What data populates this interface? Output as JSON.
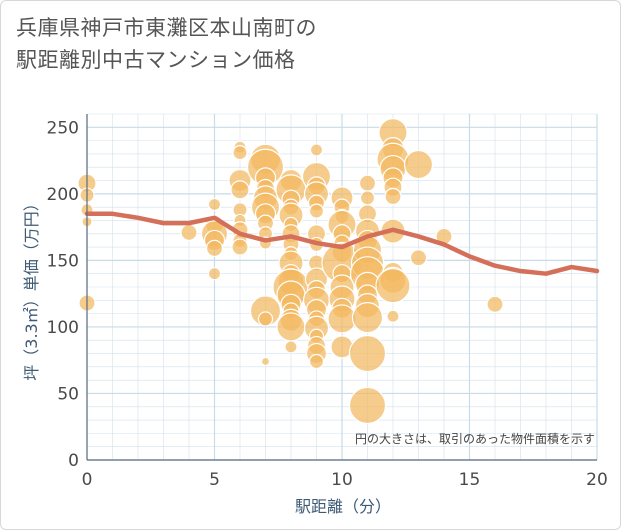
{
  "chart_data": {
    "type": "scatter",
    "title": "兵庫県神戸市東灘区本山南町の\n駅距離別中古マンション価格",
    "xlabel": "駅距離（分）",
    "ylabel": "坪（3.3㎡）単価（万円）",
    "note": "円の大きさは、取引のあった物件面積を示す",
    "xlim": [
      0,
      20
    ],
    "ylim": [
      0,
      260
    ],
    "x_ticks": [
      0,
      5,
      10,
      15,
      20
    ],
    "y_ticks": [
      0,
      50,
      100,
      150,
      200,
      250
    ],
    "grid": true,
    "colors": {
      "bubble": "#f2b960",
      "bubble_stroke": "#ffffff",
      "trend": "#d4705a",
      "grid": "#c8dbe8",
      "axis": "#5a6d80"
    },
    "series": [
      {
        "kind": "bubbles",
        "points": [
          {
            "x": 0,
            "y": 208,
            "s": 9
          },
          {
            "x": 0,
            "y": 199,
            "s": 7
          },
          {
            "x": 0,
            "y": 188,
            "s": 6
          },
          {
            "x": 0,
            "y": 179,
            "s": 5
          },
          {
            "x": 0,
            "y": 118,
            "s": 8
          },
          {
            "x": 4,
            "y": 171,
            "s": 8
          },
          {
            "x": 5,
            "y": 192,
            "s": 6
          },
          {
            "x": 5,
            "y": 177,
            "s": 9
          },
          {
            "x": 5,
            "y": 170,
            "s": 13
          },
          {
            "x": 5,
            "y": 165,
            "s": 10
          },
          {
            "x": 5,
            "y": 159,
            "s": 8
          },
          {
            "x": 5,
            "y": 140,
            "s": 6
          },
          {
            "x": 6,
            "y": 235,
            "s": 6
          },
          {
            "x": 6,
            "y": 231,
            "s": 7
          },
          {
            "x": 6,
            "y": 210,
            "s": 11
          },
          {
            "x": 6,
            "y": 203,
            "s": 9
          },
          {
            "x": 6,
            "y": 188,
            "s": 7
          },
          {
            "x": 6,
            "y": 180,
            "s": 6
          },
          {
            "x": 6,
            "y": 173,
            "s": 8
          },
          {
            "x": 6,
            "y": 165,
            "s": 7
          },
          {
            "x": 6,
            "y": 160,
            "s": 8
          },
          {
            "x": 7,
            "y": 226,
            "s": 15
          },
          {
            "x": 7,
            "y": 220,
            "s": 18
          },
          {
            "x": 7,
            "y": 212,
            "s": 10
          },
          {
            "x": 7,
            "y": 204,
            "s": 9
          },
          {
            "x": 7,
            "y": 197,
            "s": 12
          },
          {
            "x": 7,
            "y": 190,
            "s": 14
          },
          {
            "x": 7,
            "y": 185,
            "s": 10
          },
          {
            "x": 7,
            "y": 178,
            "s": 8
          },
          {
            "x": 7,
            "y": 170,
            "s": 7
          },
          {
            "x": 7,
            "y": 163,
            "s": 6
          },
          {
            "x": 7,
            "y": 112,
            "s": 15
          },
          {
            "x": 7,
            "y": 106,
            "s": 7
          },
          {
            "x": 7,
            "y": 74,
            "s": 4
          },
          {
            "x": 8,
            "y": 210,
            "s": 11
          },
          {
            "x": 8,
            "y": 203,
            "s": 15
          },
          {
            "x": 8,
            "y": 196,
            "s": 9
          },
          {
            "x": 8,
            "y": 190,
            "s": 8
          },
          {
            "x": 8,
            "y": 184,
            "s": 12
          },
          {
            "x": 8,
            "y": 177,
            "s": 7
          },
          {
            "x": 8,
            "y": 170,
            "s": 9
          },
          {
            "x": 8,
            "y": 162,
            "s": 8
          },
          {
            "x": 8,
            "y": 155,
            "s": 7
          },
          {
            "x": 8,
            "y": 148,
            "s": 12
          },
          {
            "x": 8,
            "y": 140,
            "s": 9
          },
          {
            "x": 8,
            "y": 134,
            "s": 13
          },
          {
            "x": 8,
            "y": 130,
            "s": 18
          },
          {
            "x": 8,
            "y": 124,
            "s": 14
          },
          {
            "x": 8,
            "y": 117,
            "s": 10
          },
          {
            "x": 8,
            "y": 112,
            "s": 8
          },
          {
            "x": 8,
            "y": 105,
            "s": 11
          },
          {
            "x": 8,
            "y": 100,
            "s": 14
          },
          {
            "x": 8,
            "y": 85,
            "s": 6
          },
          {
            "x": 9,
            "y": 233,
            "s": 6
          },
          {
            "x": 9,
            "y": 213,
            "s": 14
          },
          {
            "x": 9,
            "y": 206,
            "s": 9
          },
          {
            "x": 9,
            "y": 200,
            "s": 12
          },
          {
            "x": 9,
            "y": 193,
            "s": 8
          },
          {
            "x": 9,
            "y": 187,
            "s": 7
          },
          {
            "x": 9,
            "y": 170,
            "s": 9
          },
          {
            "x": 9,
            "y": 162,
            "s": 7
          },
          {
            "x": 9,
            "y": 148,
            "s": 8
          },
          {
            "x": 9,
            "y": 136,
            "s": 11
          },
          {
            "x": 9,
            "y": 128,
            "s": 9
          },
          {
            "x": 9,
            "y": 120,
            "s": 13
          },
          {
            "x": 9,
            "y": 113,
            "s": 10
          },
          {
            "x": 9,
            "y": 106,
            "s": 8
          },
          {
            "x": 9,
            "y": 99,
            "s": 12
          },
          {
            "x": 9,
            "y": 93,
            "s": 7
          },
          {
            "x": 9,
            "y": 86,
            "s": 9
          },
          {
            "x": 9,
            "y": 80,
            "s": 10
          },
          {
            "x": 9,
            "y": 74,
            "s": 7
          },
          {
            "x": 10,
            "y": 197,
            "s": 11
          },
          {
            "x": 10,
            "y": 190,
            "s": 8
          },
          {
            "x": 10,
            "y": 183,
            "s": 7
          },
          {
            "x": 10,
            "y": 177,
            "s": 14
          },
          {
            "x": 10,
            "y": 170,
            "s": 9
          },
          {
            "x": 10,
            "y": 163,
            "s": 8
          },
          {
            "x": 10,
            "y": 156,
            "s": 10
          },
          {
            "x": 10,
            "y": 148,
            "s": 20
          },
          {
            "x": 10,
            "y": 140,
            "s": 9
          },
          {
            "x": 10,
            "y": 130,
            "s": 12
          },
          {
            "x": 10,
            "y": 121,
            "s": 13
          },
          {
            "x": 10,
            "y": 114,
            "s": 10
          },
          {
            "x": 10,
            "y": 106,
            "s": 14
          },
          {
            "x": 10,
            "y": 85,
            "s": 11
          },
          {
            "x": 11,
            "y": 208,
            "s": 8
          },
          {
            "x": 11,
            "y": 197,
            "s": 7
          },
          {
            "x": 11,
            "y": 185,
            "s": 9
          },
          {
            "x": 11,
            "y": 172,
            "s": 12
          },
          {
            "x": 11,
            "y": 165,
            "s": 10
          },
          {
            "x": 11,
            "y": 158,
            "s": 14
          },
          {
            "x": 11,
            "y": 148,
            "s": 16
          },
          {
            "x": 11,
            "y": 140,
            "s": 17
          },
          {
            "x": 11,
            "y": 132,
            "s": 12
          },
          {
            "x": 11,
            "y": 124,
            "s": 10
          },
          {
            "x": 11,
            "y": 116,
            "s": 12
          },
          {
            "x": 11,
            "y": 107,
            "s": 15
          },
          {
            "x": 11,
            "y": 80,
            "s": 18
          },
          {
            "x": 11,
            "y": 41,
            "s": 18
          },
          {
            "x": 12,
            "y": 246,
            "s": 14
          },
          {
            "x": 12,
            "y": 234,
            "s": 11
          },
          {
            "x": 12,
            "y": 226,
            "s": 16
          },
          {
            "x": 12,
            "y": 219,
            "s": 13
          },
          {
            "x": 12,
            "y": 212,
            "s": 10
          },
          {
            "x": 12,
            "y": 205,
            "s": 9
          },
          {
            "x": 12,
            "y": 198,
            "s": 8
          },
          {
            "x": 12,
            "y": 172,
            "s": 12
          },
          {
            "x": 12,
            "y": 141,
            "s": 10
          },
          {
            "x": 12,
            "y": 135,
            "s": 13
          },
          {
            "x": 12,
            "y": 131,
            "s": 17
          },
          {
            "x": 12,
            "y": 108,
            "s": 6
          },
          {
            "x": 13,
            "y": 222,
            "s": 14
          },
          {
            "x": 13,
            "y": 152,
            "s": 8
          },
          {
            "x": 14,
            "y": 168,
            "s": 8
          },
          {
            "x": 16,
            "y": 117,
            "s": 8
          }
        ]
      },
      {
        "kind": "line",
        "x": [
          0,
          1,
          2,
          3,
          4,
          5,
          6,
          7,
          8,
          9,
          10,
          11,
          12,
          13,
          14,
          15,
          16,
          17,
          18,
          19,
          20
        ],
        "y": [
          185,
          185,
          182,
          178,
          178,
          182,
          170,
          165,
          168,
          163,
          160,
          168,
          173,
          168,
          162,
          153,
          146,
          142,
          140,
          145,
          142
        ]
      }
    ]
  }
}
